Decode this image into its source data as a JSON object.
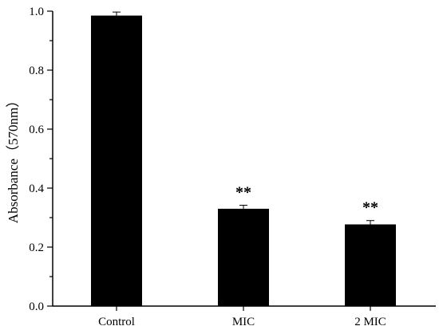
{
  "chart_data": {
    "type": "bar",
    "categories": [
      "Control",
      "MIC",
      "2 MIC"
    ],
    "values": [
      0.985,
      0.33,
      0.277
    ],
    "errors": [
      0.012,
      0.012,
      0.013
    ],
    "annotations": [
      "",
      "**",
      "**"
    ],
    "ylabel": "Absorbance（570nm）",
    "ylim": [
      0,
      1.0
    ],
    "yticks": [
      "0.0",
      "0.2",
      "0.4",
      "0.6",
      "0.8",
      "1.0"
    ],
    "grid": false,
    "bar_color": "#000000"
  }
}
